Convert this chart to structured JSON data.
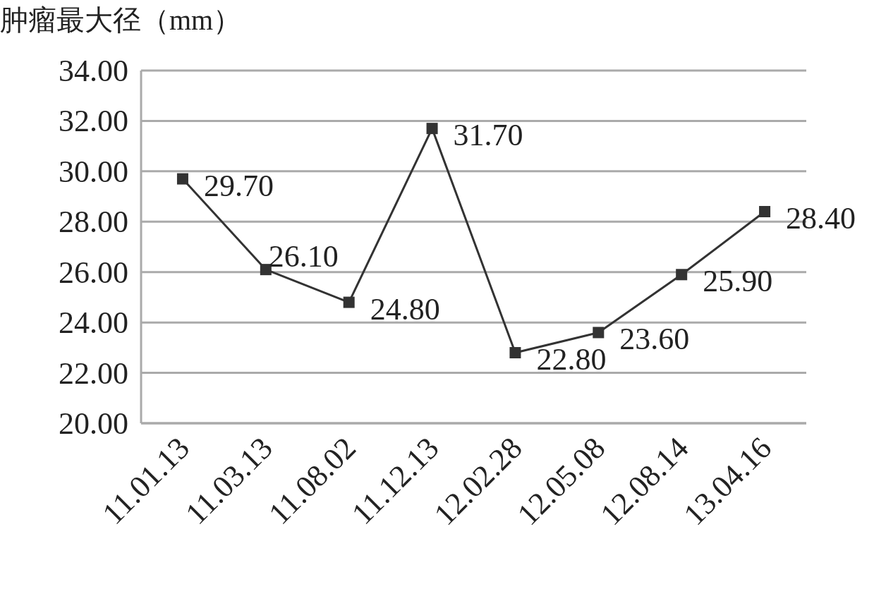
{
  "chart_data": {
    "type": "line",
    "ylabel": "肿瘤最大径（mm）",
    "categories": [
      "11.01.13",
      "11.03.13",
      "11.08.02",
      "11.12.13",
      "12.02.28",
      "12.05.08",
      "12.08.14",
      "13.04.16"
    ],
    "series": [
      {
        "color": "#333333",
        "values": [
          29.7,
          26.1,
          24.8,
          31.7,
          22.8,
          23.6,
          25.9,
          28.4
        ]
      }
    ],
    "value_labels": [
      "29.70",
      "26.10",
      "24.80",
      "31.70",
      "22.80",
      "23.60",
      "25.90",
      "28.40"
    ],
    "ylim": [
      20,
      34
    ],
    "yticks": [
      {
        "value": 20,
        "label": "20.00"
      },
      {
        "value": 22,
        "label": "22.00"
      },
      {
        "value": 24,
        "label": "24.00"
      },
      {
        "value": 26,
        "label": "26.00"
      },
      {
        "value": 28,
        "label": "28.00"
      },
      {
        "value": 30,
        "label": "30.00"
      },
      {
        "value": 32,
        "label": "32.00"
      },
      {
        "value": 34,
        "label": "34.00"
      }
    ],
    "grid": "y",
    "marker": "square",
    "line_style": "solid"
  }
}
